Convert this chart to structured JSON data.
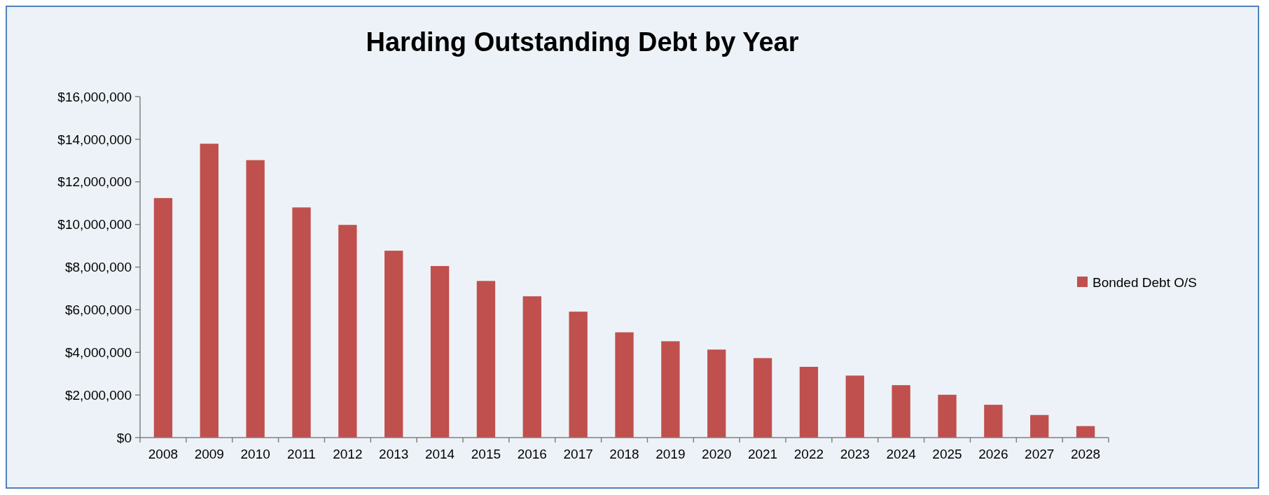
{
  "chart_data": {
    "type": "bar",
    "title": "Harding Outstanding Debt by Year",
    "categories": [
      "2008",
      "2009",
      "2010",
      "2011",
      "2012",
      "2013",
      "2014",
      "2015",
      "2016",
      "2017",
      "2018",
      "2019",
      "2020",
      "2021",
      "2022",
      "2023",
      "2024",
      "2025",
      "2026",
      "2027",
      "2028"
    ],
    "series": [
      {
        "name": "Bonded Debt O/S",
        "color": "#c0504d",
        "values": [
          11240000,
          13790000,
          13020000,
          10800000,
          9980000,
          8770000,
          8050000,
          7350000,
          6630000,
          5910000,
          4940000,
          4520000,
          4130000,
          3730000,
          3320000,
          2910000,
          2460000,
          2010000,
          1540000,
          1060000,
          540000
        ]
      }
    ],
    "ylim": [
      0,
      16000000
    ],
    "yticks": [
      {
        "value": 0,
        "label": "$0"
      },
      {
        "value": 2000000,
        "label": "$2,000,000"
      },
      {
        "value": 4000000,
        "label": "$4,000,000"
      },
      {
        "value": 6000000,
        "label": "$6,000,000"
      },
      {
        "value": 8000000,
        "label": "$8,000,000"
      },
      {
        "value": 10000000,
        "label": "$10,000,000"
      },
      {
        "value": 12000000,
        "label": "$12,000,000"
      },
      {
        "value": 14000000,
        "label": "$14,000,000"
      },
      {
        "value": 16000000,
        "label": "$16,000,000"
      }
    ],
    "legend": "right"
  }
}
